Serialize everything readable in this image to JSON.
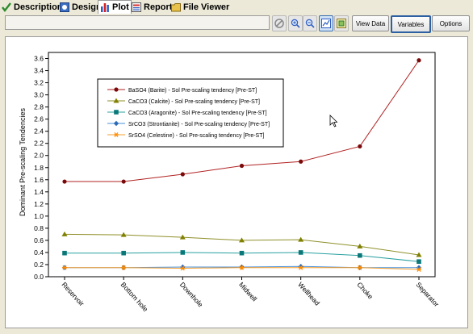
{
  "tabs": [
    {
      "label": "Description",
      "icon": "check-icon",
      "active": false
    },
    {
      "label": "Design",
      "icon": "design-icon",
      "active": false
    },
    {
      "label": "Plot",
      "icon": "bar-chart-icon",
      "active": true
    },
    {
      "label": "Report",
      "icon": "report-icon",
      "active": false
    },
    {
      "label": "File Viewer",
      "icon": "folder-icon",
      "active": false
    }
  ],
  "toolbar": {
    "status_value": "",
    "icons": [
      "no-entry-icon",
      "zoom-in-icon",
      "zoom-out-icon",
      "chart-view-icon",
      "chart-settings-icon"
    ],
    "view_data_label": "View Data",
    "variables_label": "Variables",
    "options_label": "Options"
  },
  "chart_data": {
    "type": "line",
    "title": "",
    "xlabel": "",
    "ylabel": "Dominant Pre-scaling Tendencies",
    "ylim": [
      0,
      3.7
    ],
    "yticks": [
      "0.0",
      "0.2",
      "0.4",
      "0.6",
      "0.8",
      "1.0",
      "1.2",
      "1.4",
      "1.6",
      "1.8",
      "2.0",
      "2.2",
      "2.4",
      "2.6",
      "2.8",
      "3.0",
      "3.2",
      "3.4",
      "3.6"
    ],
    "categories": [
      "Reservoir",
      "Bottom hole",
      "Downhole",
      "Midwell",
      "Wellhead",
      "Choke",
      "Separator"
    ],
    "grid": false,
    "legend_position": "top-left",
    "series": [
      {
        "name": "BaSO4 (Barite) - Sol Pre-scaling tendency [Pre-ST]",
        "color": "#b22222",
        "marker": "circle",
        "marker_color": "#7a0a0a",
        "values": [
          1.57,
          1.57,
          1.69,
          1.83,
          1.9,
          2.15,
          3.57
        ]
      },
      {
        "name": "CaCO3 (Calcite) - Sol Pre-scaling tendency [Pre-ST]",
        "color": "#8f8f2a",
        "marker": "triangle",
        "marker_color": "#808000",
        "values": [
          0.7,
          0.69,
          0.65,
          0.6,
          0.61,
          0.5,
          0.36
        ]
      },
      {
        "name": "CaCO3 (Aragonite) - Sol Pre-scaling tendency [Pre-ST]",
        "color": "#2aa0a0",
        "marker": "square",
        "marker_color": "#0a7878",
        "values": [
          0.39,
          0.39,
          0.4,
          0.39,
          0.4,
          0.35,
          0.25
        ]
      },
      {
        "name": "SrCO3 (Strontianite) - Sol Pre-scaling tendency [Pre-ST]",
        "color": "#4a90d9",
        "marker": "diamond",
        "marker_color": "#2a6ab8",
        "values": [
          0.15,
          0.15,
          0.16,
          0.16,
          0.17,
          0.15,
          0.15
        ]
      },
      {
        "name": "SrSO4 (Celestine) - Sol Pre-scaling tendency [Pre-ST]",
        "color": "#f5a030",
        "marker": "star",
        "marker_color": "#ff8c00",
        "values": [
          0.15,
          0.15,
          0.14,
          0.15,
          0.15,
          0.15,
          0.12
        ]
      }
    ]
  }
}
